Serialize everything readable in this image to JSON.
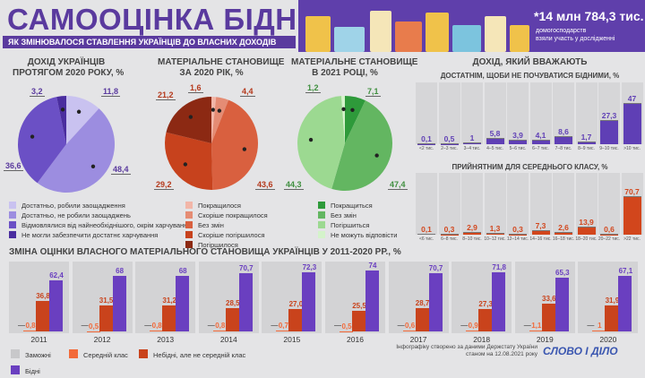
{
  "header": {
    "title": "САМООЦІНКА БІДНОСТІ",
    "subtitle": "ЯК ЗМІНЮВАЛОСЯ СТАВЛЕННЯ УКРАЇНЦІВ ДО ВЛАСНИХ ДОХОДІВ",
    "stat": "*14 млн 784,3 тис.",
    "stat_sub1": "домогосподарств",
    "stat_sub2": "взяли участь у дослідженні"
  },
  "footer": {
    "line1": "Інфографіку створено за даними Держстату України",
    "line2": "станом на 12.08.2021 року",
    "logo": "СЛОВО І ДІЛО"
  },
  "chart_data": [
    {
      "type": "pie",
      "title": "ДОХІД УКРАЇНЦІВ ПРОТЯГОМ 2020 РОКУ, %",
      "title1": "ДОХІД УКРАЇНЦІВ",
      "title2": "ПРОТЯГОМ 2020 РОКУ, %",
      "labels": [
        "Достатньо, робили заощадження",
        "Достатньо, не робили заощаджень",
        "Відмовлялися від найнеобхіднішого, окрім харчування",
        "Не могли забезпечити достатнє харчування"
      ],
      "values": [
        11.8,
        48.4,
        36.6,
        3.2
      ],
      "display": [
        "11,8",
        "48,4",
        "36,6",
        "3,2"
      ],
      "colors": [
        "#c9c2f0",
        "#9c8de0",
        "#6b50c5",
        "#4a2d9f"
      ],
      "label_color": "#5a3a9e"
    },
    {
      "type": "pie",
      "title": "МАТЕРІАЛЬНЕ СТАНОВИЩЕ ЗА 2020 РІК, %",
      "title1": "МАТЕРІАЛЬНЕ СТАНОВИЩЕ",
      "title2": "ЗА 2020 РІК, %",
      "labels": [
        "Покращилося",
        "Скоріше покращилося",
        "Без змін",
        "Скоріше погіршилося",
        "Погіршилося"
      ],
      "values": [
        1.6,
        4.4,
        43.6,
        29.2,
        21.2
      ],
      "display": [
        "1,6",
        "4,4",
        "43,6",
        "29,2",
        "21,2"
      ],
      "colors": [
        "#f2b6a8",
        "#e58c74",
        "#d9603f",
        "#c7421d",
        "#8c2913"
      ],
      "label_color": "#b5391c"
    },
    {
      "type": "pie",
      "title": "МАТЕРІАЛЬНЕ СТАНОВИЩЕ В 2021 РОЦІ, %",
      "title1": "МАТЕРІАЛЬНЕ СТАНОВИЩЕ",
      "title2": "В 2021 РОЦІ, %",
      "labels": [
        "Покращиться",
        "Без змін",
        "Погіршиться",
        "Не можуть відповісти"
      ],
      "values": [
        7.1,
        47.4,
        44.3,
        1.2
      ],
      "display": [
        "7,1",
        "47,4",
        "44,3",
        "1,2"
      ],
      "colors": [
        "#2e9a3a",
        "#63b661",
        "#9cd991",
        "#d4f3ca"
      ],
      "label_color": "#3f8f3f"
    },
    {
      "type": "bar",
      "title": "ДОХІД, ЯКИЙ ВВАЖАЮТЬ",
      "subtitle": "ДОСТАТНІМ, ЩОБИ НЕ ПОЧУВАТИСЯ БІДНИМИ, %",
      "categories": [
        "<2 тис.",
        "2–3 тис.",
        "3–4 тис.",
        "4–5 тис.",
        "5–6 тис.",
        "6–7 тис.",
        "7–8 тис.",
        "8–9 тис.",
        "9–10 тис.",
        ">10 тис."
      ],
      "values": [
        0.1,
        0.5,
        1,
        5.8,
        3.9,
        4.1,
        8.6,
        1.7,
        27.3,
        47
      ],
      "display": [
        "0,1",
        "0,5",
        "1",
        "5,8",
        "3,9",
        "4,1",
        "8,6",
        "1,7",
        "27,3",
        "47"
      ],
      "color": "#5f3fb5",
      "ylim": [
        0,
        47
      ]
    },
    {
      "type": "bar",
      "subtitle": "ПРИЙНЯТНИМ ДЛЯ СЕРЕДНЬОГО КЛАСУ, %",
      "categories": [
        "<6 тис.",
        "6–8 тис.",
        "8–10 тис.",
        "10–12 тис.",
        "12–14 тис.",
        "14–16 тис.",
        "16–18 тис.",
        "18–20 тис.",
        "20–22 тис.",
        ">22 тис."
      ],
      "values": [
        0.1,
        0.3,
        2.9,
        1.3,
        0.3,
        7.3,
        2.6,
        13.9,
        0.6,
        70.7
      ],
      "display": [
        "0,1",
        "0,3",
        "2,9",
        "1,3",
        "0,3",
        "7,3",
        "2,6",
        "13,9",
        "0,6",
        "70,7"
      ],
      "color": "#d2461c",
      "ylim": [
        0,
        70.7
      ]
    },
    {
      "type": "bar",
      "title": "ЗМІНА ОЦІНКИ ВЛАСНОГО МАТЕРІАЛЬНОГО СТАНОВИЩА УКРАЇНЦІВ У 2011-2020 РР., %",
      "categories": [
        "2011",
        "2012",
        "2013",
        "2014",
        "2015",
        "2016",
        "2017",
        "2018",
        "2019",
        "2020"
      ],
      "series": [
        {
          "name": "Заможні",
          "values": [
            null,
            null,
            null,
            null,
            null,
            null,
            null,
            null,
            null,
            null
          ],
          "display": [
            "—",
            "—",
            "—",
            "—",
            "—",
            "—",
            "—",
            "—",
            "—",
            "—"
          ],
          "color": "#c8c8ca"
        },
        {
          "name": "Середній клас",
          "values": [
            0.8,
            0.5,
            0.8,
            0.8,
            0.7,
            0.5,
            0.6,
            0.9,
            1.1,
            1
          ],
          "display": [
            "0,8",
            "0,5",
            "0,8",
            "0,8",
            "0,7",
            "0,5",
            "0,6",
            "0,9",
            "1,1",
            "1"
          ],
          "color": "#f26a3a"
        },
        {
          "name": "Небідні, але не середній клас",
          "values": [
            36.8,
            31.5,
            31.2,
            28.5,
            27.0,
            25.5,
            28.7,
            27.3,
            33.6,
            31.9
          ],
          "display": [
            "36,8",
            "31,5",
            "31,2",
            "28,5",
            "27,0",
            "25,5",
            "28,7",
            "27,3",
            "33,6",
            "31,9"
          ],
          "color": "#c9431c"
        },
        {
          "name": "Бідні",
          "values": [
            62.4,
            68,
            68,
            70.7,
            72.3,
            74,
            70.7,
            71.8,
            65.3,
            67.1
          ],
          "display": [
            "62,4",
            "68",
            "68",
            "70,7",
            "72,3",
            "74",
            "70,7",
            "71,8",
            "65,3",
            "67,1"
          ],
          "color": "#6a3fc0"
        }
      ],
      "ylim": [
        0,
        74
      ]
    }
  ]
}
